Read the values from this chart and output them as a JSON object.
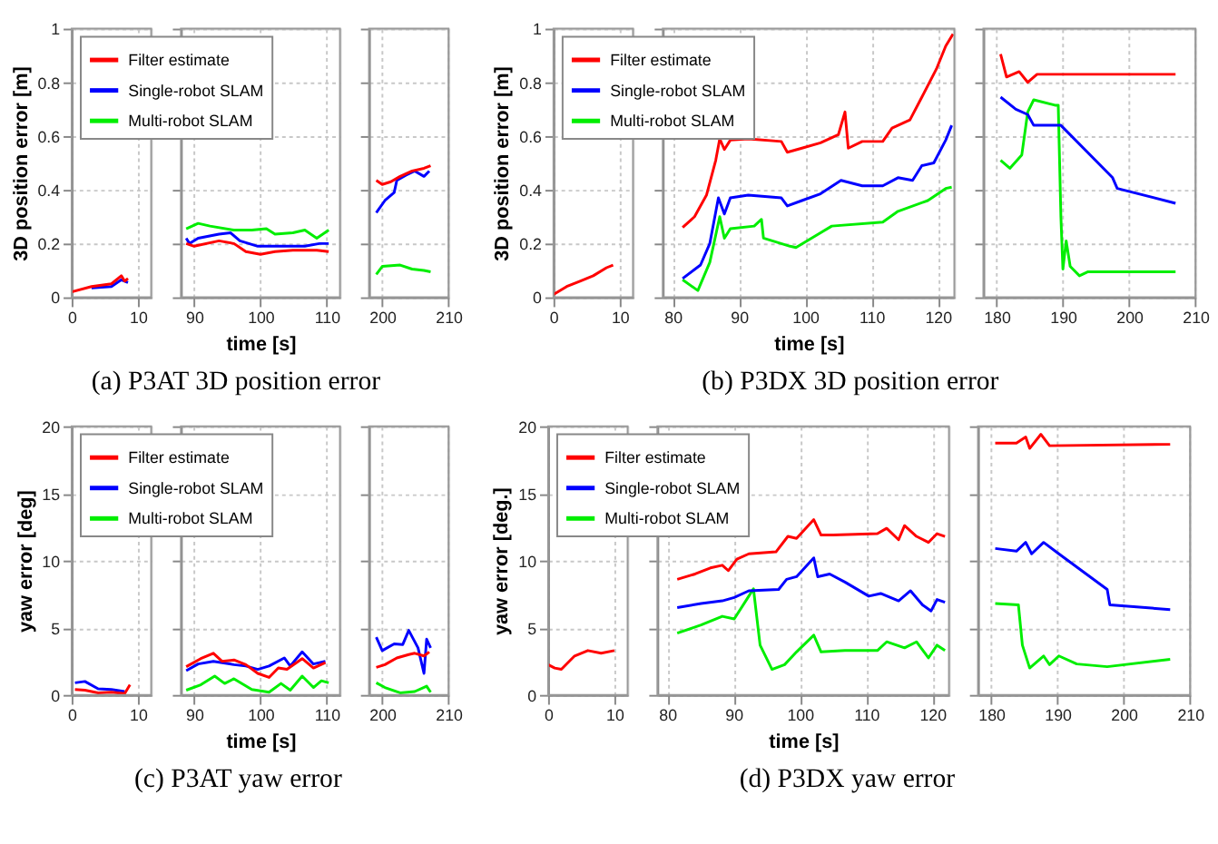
{
  "chart_data": [
    {
      "type": "line",
      "ylabel": "3D position error [m]",
      "xlim": [
        0,
        12
      ],
      "xticks": [
        0,
        10
      ],
      "ylim": [
        0,
        1
      ],
      "yticks": [
        0,
        0.2,
        0.4,
        0.6,
        0.8,
        1
      ],
      "grid": true,
      "series": [
        {
          "color": "#ff0000",
          "x": [
            0,
            3,
            6,
            7.5,
            8,
            8.5
          ],
          "values": [
            0.02,
            0.04,
            0.05,
            0.08,
            0.06,
            0.07
          ]
        },
        {
          "color": "#0000ff",
          "x": [
            3,
            6,
            7.5,
            8.5
          ],
          "values": [
            0.035,
            0.04,
            0.065,
            0.055
          ]
        }
      ]
    },
    {
      "type": "line",
      "title": "(a) P3AT 3D position error",
      "xlabel": "time [s]",
      "xlim": [
        88,
        112
      ],
      "xticks": [
        90,
        100,
        110
      ],
      "ylim": [
        0,
        1
      ],
      "yticks": [
        0,
        0.2,
        0.4,
        0.6,
        0.8,
        1
      ],
      "grid": true,
      "tick_labels": "x",
      "legend": "top left",
      "series": [
        {
          "name": "Filter estimate",
          "color": "#ff0000",
          "x": [
            88.8,
            90,
            93.75,
            96,
            97.8,
            100,
            102.2,
            104.9,
            108.5,
            110.3
          ],
          "values": [
            0.2,
            0.19,
            0.21,
            0.2,
            0.17,
            0.16,
            0.17,
            0.175,
            0.175,
            0.17
          ]
        },
        {
          "name": "Single-robot SLAM",
          "color": "#0000ff",
          "x": [
            88.8,
            89.3,
            90.6,
            93.75,
            95.5,
            96.9,
            99.6,
            102.2,
            106.7,
            108.9,
            110.3
          ],
          "values": [
            0.22,
            0.2,
            0.22,
            0.235,
            0.24,
            0.21,
            0.19,
            0.19,
            0.19,
            0.2,
            0.2
          ]
        },
        {
          "name": "Multi-robot SLAM",
          "color": "#00ee00",
          "x": [
            88.8,
            90.6,
            92.4,
            96,
            98.7,
            100.9,
            102.2,
            104.9,
            106.7,
            108.5,
            110.3
          ],
          "values": [
            0.255,
            0.275,
            0.265,
            0.25,
            0.25,
            0.255,
            0.235,
            0.24,
            0.25,
            0.22,
            0.25
          ]
        }
      ]
    },
    {
      "type": "line",
      "xlim": [
        198,
        210
      ],
      "xticks": [
        200,
        210
      ],
      "ylim": [
        0,
        1
      ],
      "yticks": [
        0,
        0.2,
        0.4,
        0.6,
        0.8,
        1
      ],
      "grid": true,
      "tick_labels": "x",
      "series": [
        {
          "color": "#ff0000",
          "x": [
            199.1,
            200,
            201.3,
            202.7,
            204.5,
            206.3,
            207.3
          ],
          "values": [
            0.435,
            0.42,
            0.43,
            0.45,
            0.47,
            0.48,
            0.49
          ]
        },
        {
          "color": "#0000ff",
          "x": [
            199.1,
            200.4,
            201.8,
            202.2,
            203.6,
            204.9,
            206.3,
            207.1
          ],
          "values": [
            0.315,
            0.36,
            0.39,
            0.435,
            0.455,
            0.47,
            0.45,
            0.47
          ]
        },
        {
          "color": "#00ee00",
          "x": [
            199.1,
            200,
            202.7,
            204.5,
            206.3,
            207.3
          ],
          "values": [
            0.085,
            0.115,
            0.12,
            0.105,
            0.1,
            0.095
          ]
        }
      ]
    },
    {
      "type": "line",
      "ylabel": "3D position error [m]",
      "xlim": [
        0,
        12
      ],
      "xticks": [
        0,
        10
      ],
      "ylim": [
        0,
        1
      ],
      "yticks": [
        0,
        0.2,
        0.4,
        0.6,
        0.8,
        1
      ],
      "grid": true,
      "series": [
        {
          "color": "#ff0000",
          "x": [
            0,
            2,
            4,
            6,
            8,
            9
          ],
          "values": [
            0.01,
            0.04,
            0.06,
            0.08,
            0.11,
            0.12
          ]
        }
      ]
    },
    {
      "type": "line",
      "title": "(b) P3DX 3D position error",
      "xlabel": "time [s]",
      "xlim": [
        78.5,
        122.5
      ],
      "xticks": [
        80,
        90,
        100,
        110,
        120
      ],
      "ylim": [
        0,
        1
      ],
      "yticks": [
        0,
        0.2,
        0.4,
        0.6,
        0.8,
        1
      ],
      "grid": true,
      "tick_labels": "x",
      "legend": "top left",
      "series": [
        {
          "name": "Filter estimate",
          "color": "#ff0000",
          "x": [
            81.5,
            83.3,
            85.1,
            86.5,
            87.1,
            87.8,
            88.7,
            91.4,
            96.4,
            97.3,
            99.5,
            102.3,
            105,
            106,
            106.5,
            108.6,
            111.7,
            113.1,
            115.8,
            117.6,
            119.8,
            121.2,
            122.3
          ],
          "values": [
            0.26,
            0.3,
            0.38,
            0.51,
            0.59,
            0.55,
            0.585,
            0.59,
            0.58,
            0.54,
            0.555,
            0.575,
            0.605,
            0.69,
            0.555,
            0.58,
            0.58,
            0.63,
            0.66,
            0.745,
            0.85,
            0.935,
            0.98
          ]
        },
        {
          "name": "Single-robot SLAM",
          "color": "#0000ff",
          "x": [
            81.5,
            84.2,
            85.6,
            86.9,
            87.8,
            88.7,
            91.4,
            96.4,
            97.3,
            99.5,
            102.3,
            105.4,
            108.6,
            111.7,
            114,
            116.2,
            117.6,
            119.4,
            121.2,
            122.1
          ],
          "values": [
            0.07,
            0.12,
            0.2,
            0.37,
            0.31,
            0.37,
            0.38,
            0.37,
            0.34,
            0.36,
            0.385,
            0.435,
            0.415,
            0.415,
            0.445,
            0.435,
            0.49,
            0.5,
            0.585,
            0.64
          ]
        },
        {
          "name": "Multi-robot SLAM",
          "color": "#00ee00",
          "x": [
            81.5,
            83.8,
            85.6,
            87.1,
            87.8,
            88.7,
            92.3,
            93.4,
            93.7,
            97.7,
            98.6,
            104,
            111.7,
            114,
            118.5,
            121.2,
            122.1
          ],
          "values": [
            0.065,
            0.025,
            0.13,
            0.3,
            0.22,
            0.255,
            0.265,
            0.29,
            0.22,
            0.19,
            0.185,
            0.265,
            0.28,
            0.32,
            0.36,
            0.405,
            0.41
          ]
        }
      ]
    },
    {
      "type": "line",
      "xlim": [
        178,
        210
      ],
      "xticks": [
        180,
        190,
        200,
        210
      ],
      "ylim": [
        0,
        1
      ],
      "yticks": [
        0,
        0.2,
        0.4,
        0.6,
        0.8,
        1
      ],
      "grid": true,
      "tick_labels": "x",
      "series": [
        {
          "color": "#ff0000",
          "x": [
            180.6,
            181.5,
            183.4,
            184.7,
            186.1,
            193.8,
            207
          ],
          "values": [
            0.905,
            0.82,
            0.84,
            0.8,
            0.83,
            0.83,
            0.83
          ]
        },
        {
          "color": "#0000ff",
          "x": [
            180.6,
            182.9,
            184.7,
            185.6,
            189.7,
            197.5,
            198.2,
            207
          ],
          "values": [
            0.745,
            0.7,
            0.68,
            0.64,
            0.64,
            0.445,
            0.405,
            0.35
          ]
        },
        {
          "color": "#00ee00",
          "x": [
            180.6,
            182,
            183.8,
            184.7,
            185.6,
            188.8,
            189.3,
            189.7,
            190,
            190.5,
            191.1,
            192.5,
            193.8,
            207
          ],
          "values": [
            0.51,
            0.48,
            0.53,
            0.69,
            0.735,
            0.715,
            0.715,
            0.3,
            0.105,
            0.21,
            0.115,
            0.08,
            0.095,
            0.095
          ]
        }
      ]
    },
    {
      "type": "line",
      "ylabel": "yaw error [deg]",
      "xlim": [
        0,
        12
      ],
      "xticks": [
        0,
        10
      ],
      "ylim": [
        0,
        20
      ],
      "yticks": [
        0,
        5,
        10,
        15,
        20
      ],
      "grid": true,
      "series": [
        {
          "color": "#ff0000",
          "x": [
            0.5,
            2,
            4,
            6,
            8,
            8.8
          ],
          "values": [
            0.4,
            0.35,
            0.15,
            0.2,
            0.1,
            0.75
          ]
        },
        {
          "color": "#0000ff",
          "x": [
            0.5,
            2,
            4,
            6,
            8
          ],
          "values": [
            0.9,
            1.0,
            0.45,
            0.4,
            0.25
          ]
        }
      ]
    },
    {
      "type": "line",
      "title": "(c) P3AT yaw error",
      "xlabel": "time [s]",
      "xlim": [
        88,
        112
      ],
      "xticks": [
        90,
        100,
        110
      ],
      "ylim": [
        0,
        20
      ],
      "yticks": [
        0,
        5,
        10,
        15,
        20
      ],
      "grid": true,
      "tick_labels": "x",
      "legend": "top left",
      "series": [
        {
          "name": "Filter estimate",
          "color": "#ff0000",
          "x": [
            88.8,
            91,
            92.9,
            94.2,
            96,
            97.8,
            99.6,
            101.3,
            102.7,
            104,
            106.3,
            108,
            109.8
          ],
          "values": [
            2.1,
            2.7,
            3.1,
            2.5,
            2.6,
            2.25,
            1.6,
            1.3,
            2.0,
            1.9,
            2.7,
            2.0,
            2.4
          ]
        },
        {
          "name": "Single-robot SLAM",
          "color": "#0000ff",
          "x": [
            88.8,
            90.6,
            92.9,
            96,
            97.8,
            99.6,
            101.3,
            103.6,
            104.5,
            106.3,
            108,
            109.8
          ],
          "values": [
            1.8,
            2.3,
            2.5,
            2.25,
            2.15,
            1.9,
            2.15,
            2.75,
            2.15,
            3.2,
            2.3,
            2.5
          ]
        },
        {
          "name": "Multi-robot SLAM",
          "color": "#00ee00",
          "x": [
            88.8,
            91,
            93.1,
            94.6,
            96,
            98.7,
            101.3,
            103.1,
            104.5,
            106.3,
            108,
            109.2,
            110.3
          ],
          "values": [
            0.35,
            0.75,
            1.4,
            0.85,
            1.2,
            0.4,
            0.2,
            0.85,
            0.35,
            1.4,
            0.55,
            1.05,
            0.9
          ]
        }
      ]
    },
    {
      "type": "line",
      "xlim": [
        198,
        210
      ],
      "xticks": [
        200,
        210
      ],
      "ylim": [
        0,
        20
      ],
      "yticks": [
        0,
        5,
        10,
        15,
        20
      ],
      "grid": true,
      "tick_labels": "x",
      "series": [
        {
          "color": "#ff0000",
          "x": [
            199.1,
            200.4,
            202.2,
            204,
            204.9,
            206.3,
            207.1
          ],
          "values": [
            2.05,
            2.25,
            2.75,
            3.0,
            3.1,
            2.9,
            3.2
          ]
        },
        {
          "color": "#0000ff",
          "x": [
            199.1,
            200,
            201.8,
            203.1,
            204,
            205.4,
            206.3,
            206.7,
            207.3
          ],
          "values": [
            4.3,
            3.3,
            3.8,
            3.75,
            4.8,
            3.5,
            1.6,
            4.15,
            3.5
          ]
        },
        {
          "color": "#00ee00",
          "x": [
            199.1,
            200.4,
            202.7,
            204.9,
            206.7,
            207.3
          ],
          "values": [
            0.9,
            0.55,
            0.15,
            0.25,
            0.65,
            0.2
          ]
        }
      ]
    },
    {
      "type": "line",
      "ylabel": "yaw error [deg.]",
      "xlim": [
        0,
        12
      ],
      "xticks": [
        0,
        10
      ],
      "ylim": [
        0,
        20
      ],
      "yticks": [
        0,
        5,
        10,
        15,
        20
      ],
      "grid": true,
      "series": [
        {
          "color": "#ff0000",
          "x": [
            0,
            1,
            2,
            4,
            6,
            8,
            10
          ],
          "values": [
            2.25,
            2.0,
            1.9,
            2.9,
            3.3,
            3.1,
            3.3
          ]
        }
      ]
    },
    {
      "type": "line",
      "title": "(d) P3DX yaw error",
      "xlabel": "time [s]",
      "xlim": [
        78.5,
        122.5
      ],
      "xticks": [
        80,
        90,
        100,
        110,
        120
      ],
      "ylim": [
        0,
        20
      ],
      "yticks": [
        0,
        5,
        10,
        15,
        20
      ],
      "grid": true,
      "tick_labels": "x",
      "legend": "top left",
      "series": [
        {
          "name": "Filter estimate",
          "color": "#ff0000",
          "x": [
            81.5,
            84.2,
            86.5,
            88.3,
            89.2,
            90.5,
            92.3,
            96.4,
            98.2,
            99.5,
            102.1,
            103.2,
            105,
            111.7,
            113.1,
            114.9,
            115.8,
            117.6,
            119.4,
            120.7,
            121.9
          ],
          "values": [
            8.6,
            9.0,
            9.45,
            9.65,
            9.25,
            10.1,
            10.5,
            10.65,
            11.8,
            11.65,
            13.05,
            11.9,
            11.9,
            12.0,
            12.4,
            11.55,
            12.6,
            11.8,
            11.35,
            12.0,
            11.8
          ]
        },
        {
          "name": "Single-robot SLAM",
          "color": "#0000ff",
          "x": [
            81.5,
            85.1,
            88.3,
            90.1,
            92.3,
            96.8,
            98,
            99.5,
            102.1,
            102.7,
            104.5,
            106.8,
            110.4,
            112.2,
            114.9,
            116.7,
            118.5,
            119.8,
            120.7,
            121.9
          ],
          "values": [
            6.5,
            6.8,
            7.0,
            7.25,
            7.75,
            7.85,
            8.6,
            8.8,
            10.2,
            8.8,
            9.0,
            8.4,
            7.35,
            7.55,
            7.0,
            7.75,
            6.7,
            6.25,
            7.1,
            6.9
          ]
        },
        {
          "name": "Multi-robot SLAM",
          "color": "#00ee00",
          "x": [
            81.5,
            85.1,
            88.3,
            90.1,
            92.3,
            93,
            94,
            95.8,
            97.7,
            99.5,
            102.1,
            103.2,
            106.8,
            111.7,
            113.1,
            115.8,
            117.6,
            119.4,
            120.7,
            121.9
          ],
          "values": [
            4.6,
            5.2,
            5.85,
            5.65,
            7.35,
            7.9,
            3.7,
            1.9,
            2.25,
            3.2,
            4.45,
            3.2,
            3.3,
            3.3,
            3.95,
            3.5,
            3.95,
            2.75,
            3.7,
            3.3
          ]
        }
      ]
    },
    {
      "type": "line",
      "xlim": [
        178,
        210
      ],
      "xticks": [
        180,
        190,
        200,
        210
      ],
      "ylim": [
        0,
        20
      ],
      "yticks": [
        0,
        5,
        10,
        15,
        20
      ],
      "grid": true,
      "tick_labels": "x",
      "series": [
        {
          "color": "#ff0000",
          "x": [
            180.6,
            183.8,
            185.2,
            185.8,
            187.5,
            188.8,
            207
          ],
          "values": [
            18.75,
            18.75,
            19.2,
            18.35,
            19.4,
            18.55,
            18.65
          ]
        },
        {
          "color": "#0000ff",
          "x": [
            180.6,
            183.8,
            185.2,
            186.1,
            187.9,
            190.2,
            197.5,
            197.9,
            207
          ],
          "values": [
            10.9,
            10.7,
            11.35,
            10.5,
            11.35,
            10.5,
            7.85,
            6.7,
            6.35
          ]
        },
        {
          "color": "#00ee00",
          "x": [
            180.6,
            184.1,
            184.7,
            185.8,
            187.9,
            188.8,
            190.2,
            192.9,
            197.5,
            207
          ],
          "values": [
            6.8,
            6.7,
            3.7,
            2.0,
            2.9,
            2.25,
            2.9,
            2.3,
            2.1,
            2.65
          ]
        }
      ]
    }
  ]
}
